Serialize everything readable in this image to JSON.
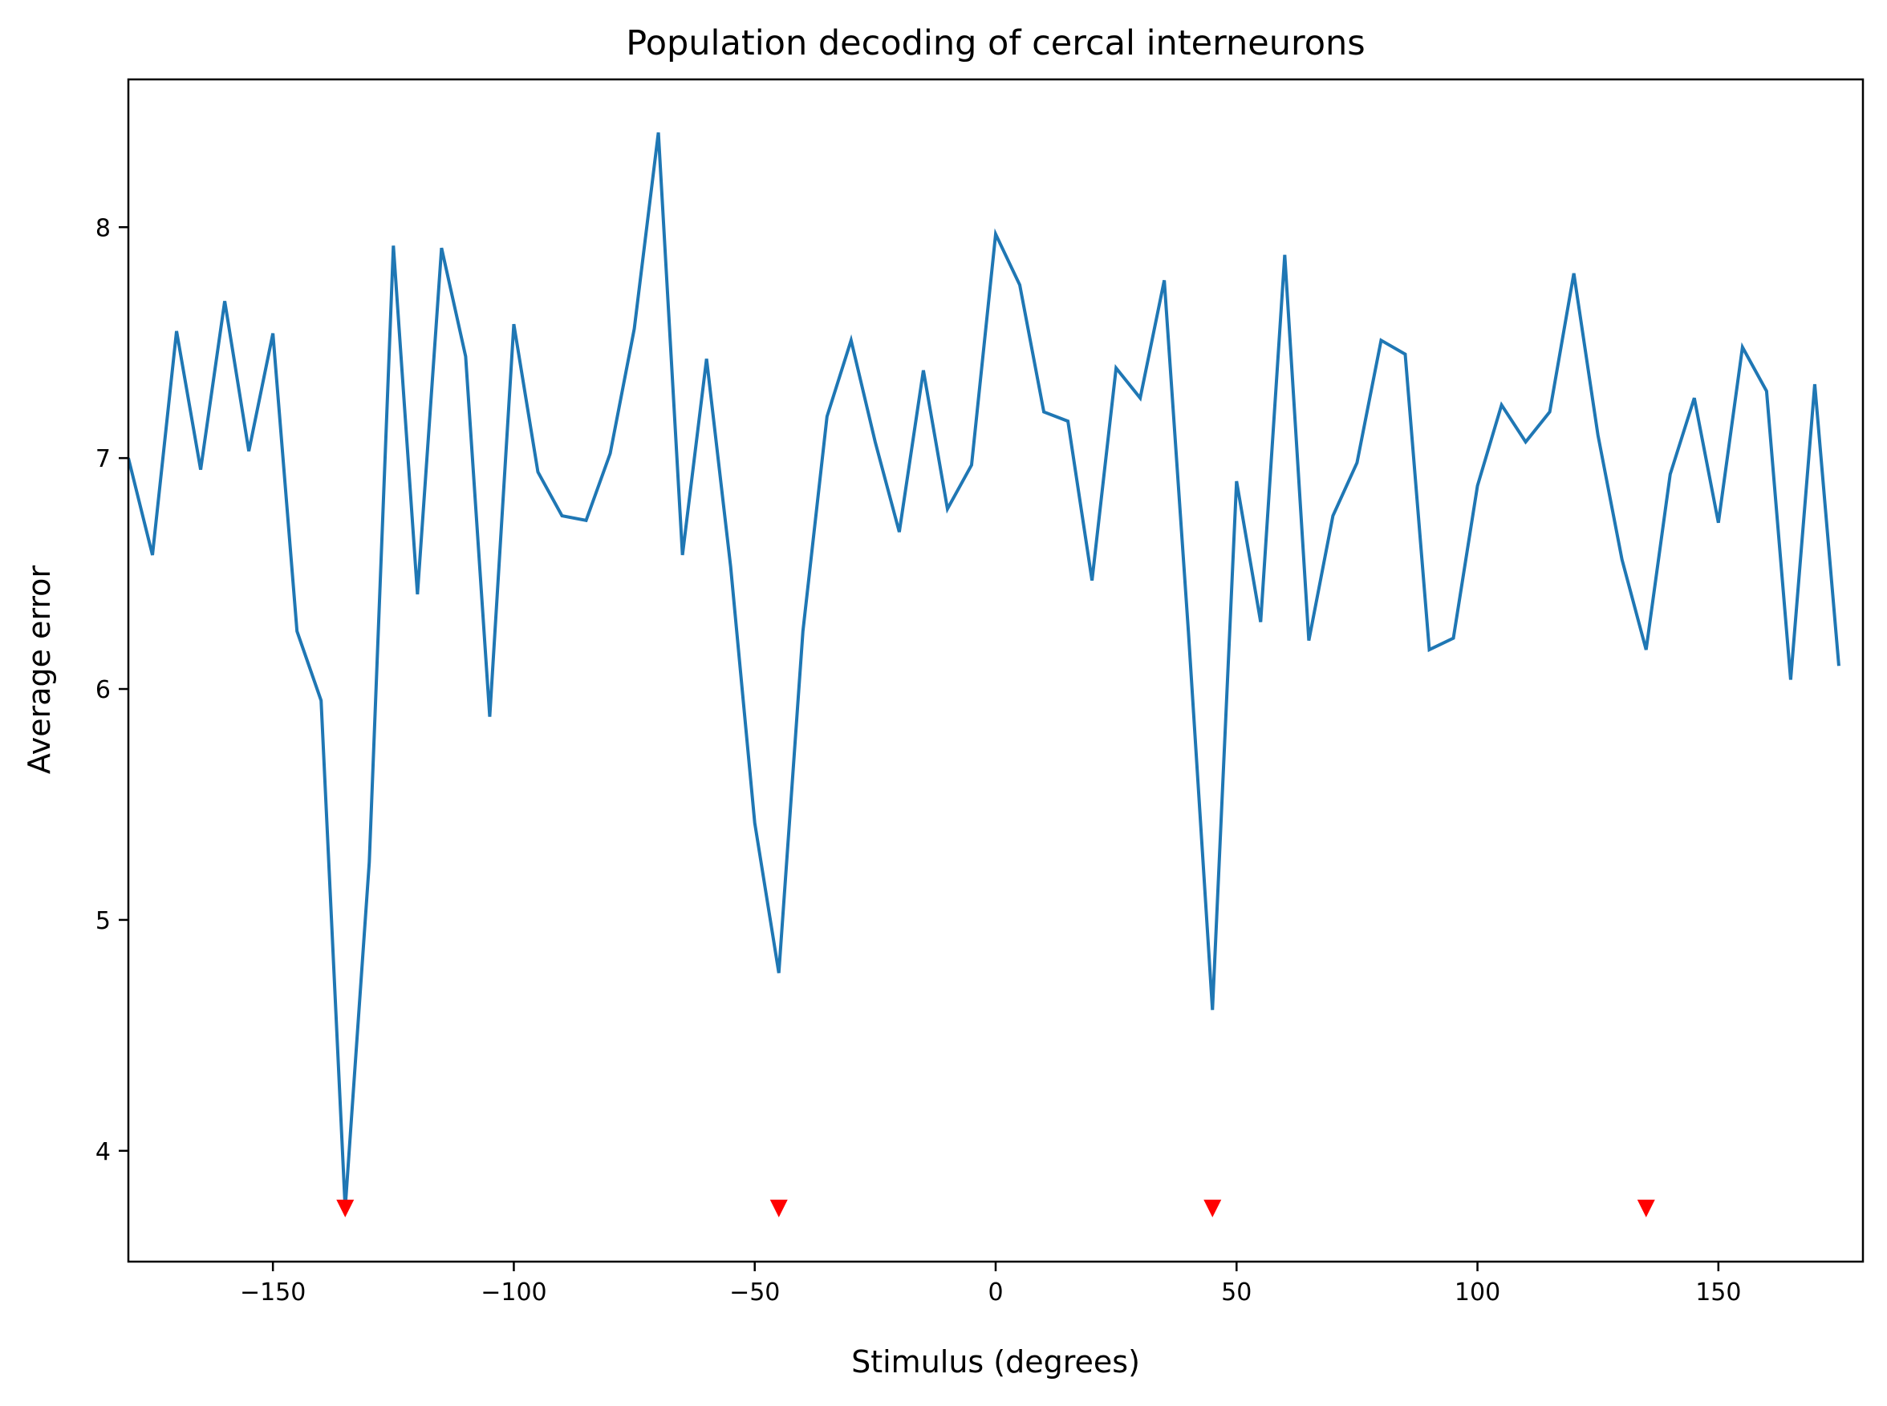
{
  "chart_data": {
    "type": "line",
    "title": "Population decoding of cercal interneurons",
    "xlabel": "Stimulus (degrees)",
    "ylabel": "Average error",
    "xlim": [
      -180,
      180
    ],
    "ylim": [
      3.52,
      8.64
    ],
    "xticks": [
      -150,
      -100,
      -50,
      0,
      50,
      100,
      150
    ],
    "xtick_labels": [
      "−150",
      "−100",
      "−50",
      "0",
      "50",
      "100",
      "150"
    ],
    "yticks": [
      4,
      5,
      6,
      7,
      8
    ],
    "ytick_labels": [
      "4",
      "5",
      "6",
      "7",
      "8"
    ],
    "grid": false,
    "series": [
      {
        "color": "#1f77b4",
        "x": [
          -180,
          -175,
          -170,
          -165,
          -160,
          -155,
          -150,
          -145,
          -140,
          -135,
          -130,
          -125,
          -120,
          -115,
          -110,
          -105,
          -100,
          -95,
          -90,
          -85,
          -80,
          -75,
          -70,
          -65,
          -60,
          -55,
          -50,
          -45,
          -40,
          -35,
          -30,
          -25,
          -20,
          -15,
          -10,
          -5,
          0,
          5,
          10,
          15,
          20,
          25,
          30,
          35,
          40,
          45,
          50,
          55,
          60,
          65,
          70,
          75,
          80,
          85,
          90,
          95,
          100,
          105,
          110,
          115,
          120,
          125,
          130,
          135,
          140,
          145,
          150,
          155,
          160,
          165,
          170,
          175
        ],
        "y": [
          7.0,
          6.58,
          7.55,
          6.95,
          7.68,
          7.03,
          7.54,
          6.25,
          5.95,
          3.75,
          5.25,
          7.92,
          6.41,
          7.91,
          7.44,
          5.88,
          7.58,
          6.94,
          6.75,
          6.73,
          7.02,
          7.56,
          8.41,
          6.58,
          7.43,
          6.53,
          5.42,
          4.77,
          6.25,
          7.18,
          7.51,
          7.07,
          6.68,
          7.38,
          6.78,
          6.97,
          7.97,
          7.75,
          7.2,
          7.16,
          6.47,
          7.39,
          7.26,
          7.77,
          6.25,
          4.61,
          6.9,
          6.29,
          7.88,
          6.21,
          6.75,
          6.98,
          7.51,
          7.45,
          6.17,
          6.22,
          6.88,
          7.23,
          7.07,
          7.2,
          7.8,
          7.1,
          6.56,
          6.17,
          6.93,
          7.26,
          6.72,
          7.48,
          7.29,
          6.04,
          7.32,
          6.1
        ]
      }
    ],
    "markers": {
      "shape": "triangle-down",
      "color": "#ff0000",
      "x": [
        -135,
        -45,
        45,
        135
      ],
      "y": [
        3.75,
        3.75,
        3.75,
        3.75
      ]
    }
  }
}
